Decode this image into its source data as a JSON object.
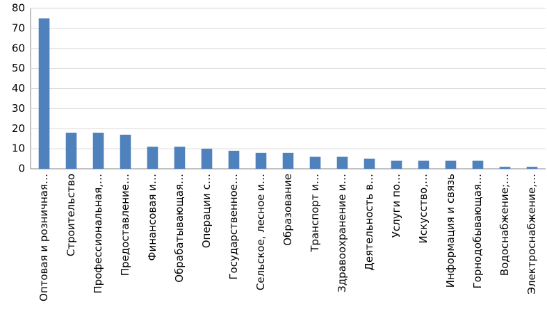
{
  "chart_data": {
    "type": "bar",
    "categories": [
      "Оптовая и розничная…",
      "Строительство",
      "Профессиональная,…",
      "Предоставление…",
      "Финансовая и…",
      "Обрабатывающая…",
      "Операции с…",
      "Государственное…",
      "Сельское, лесное и…",
      "Образование",
      "Транспорт и…",
      "Здравоохранение и…",
      "Деятельность в…",
      "Услуги по…",
      "Искусство,…",
      "Информация и связь",
      "Горнодобывающая…",
      "Водоснабжение;…",
      "Электроснабжение,…"
    ],
    "values": [
      75,
      18,
      18,
      17,
      11,
      11,
      10,
      9,
      8,
      8,
      6,
      6,
      5,
      4,
      4,
      4,
      4,
      1,
      1
    ],
    "color": "#4f81bd",
    "ylim": [
      0,
      80
    ],
    "yticks": [
      0,
      10,
      20,
      30,
      40,
      50,
      60,
      70,
      80
    ],
    "grid": true
  }
}
